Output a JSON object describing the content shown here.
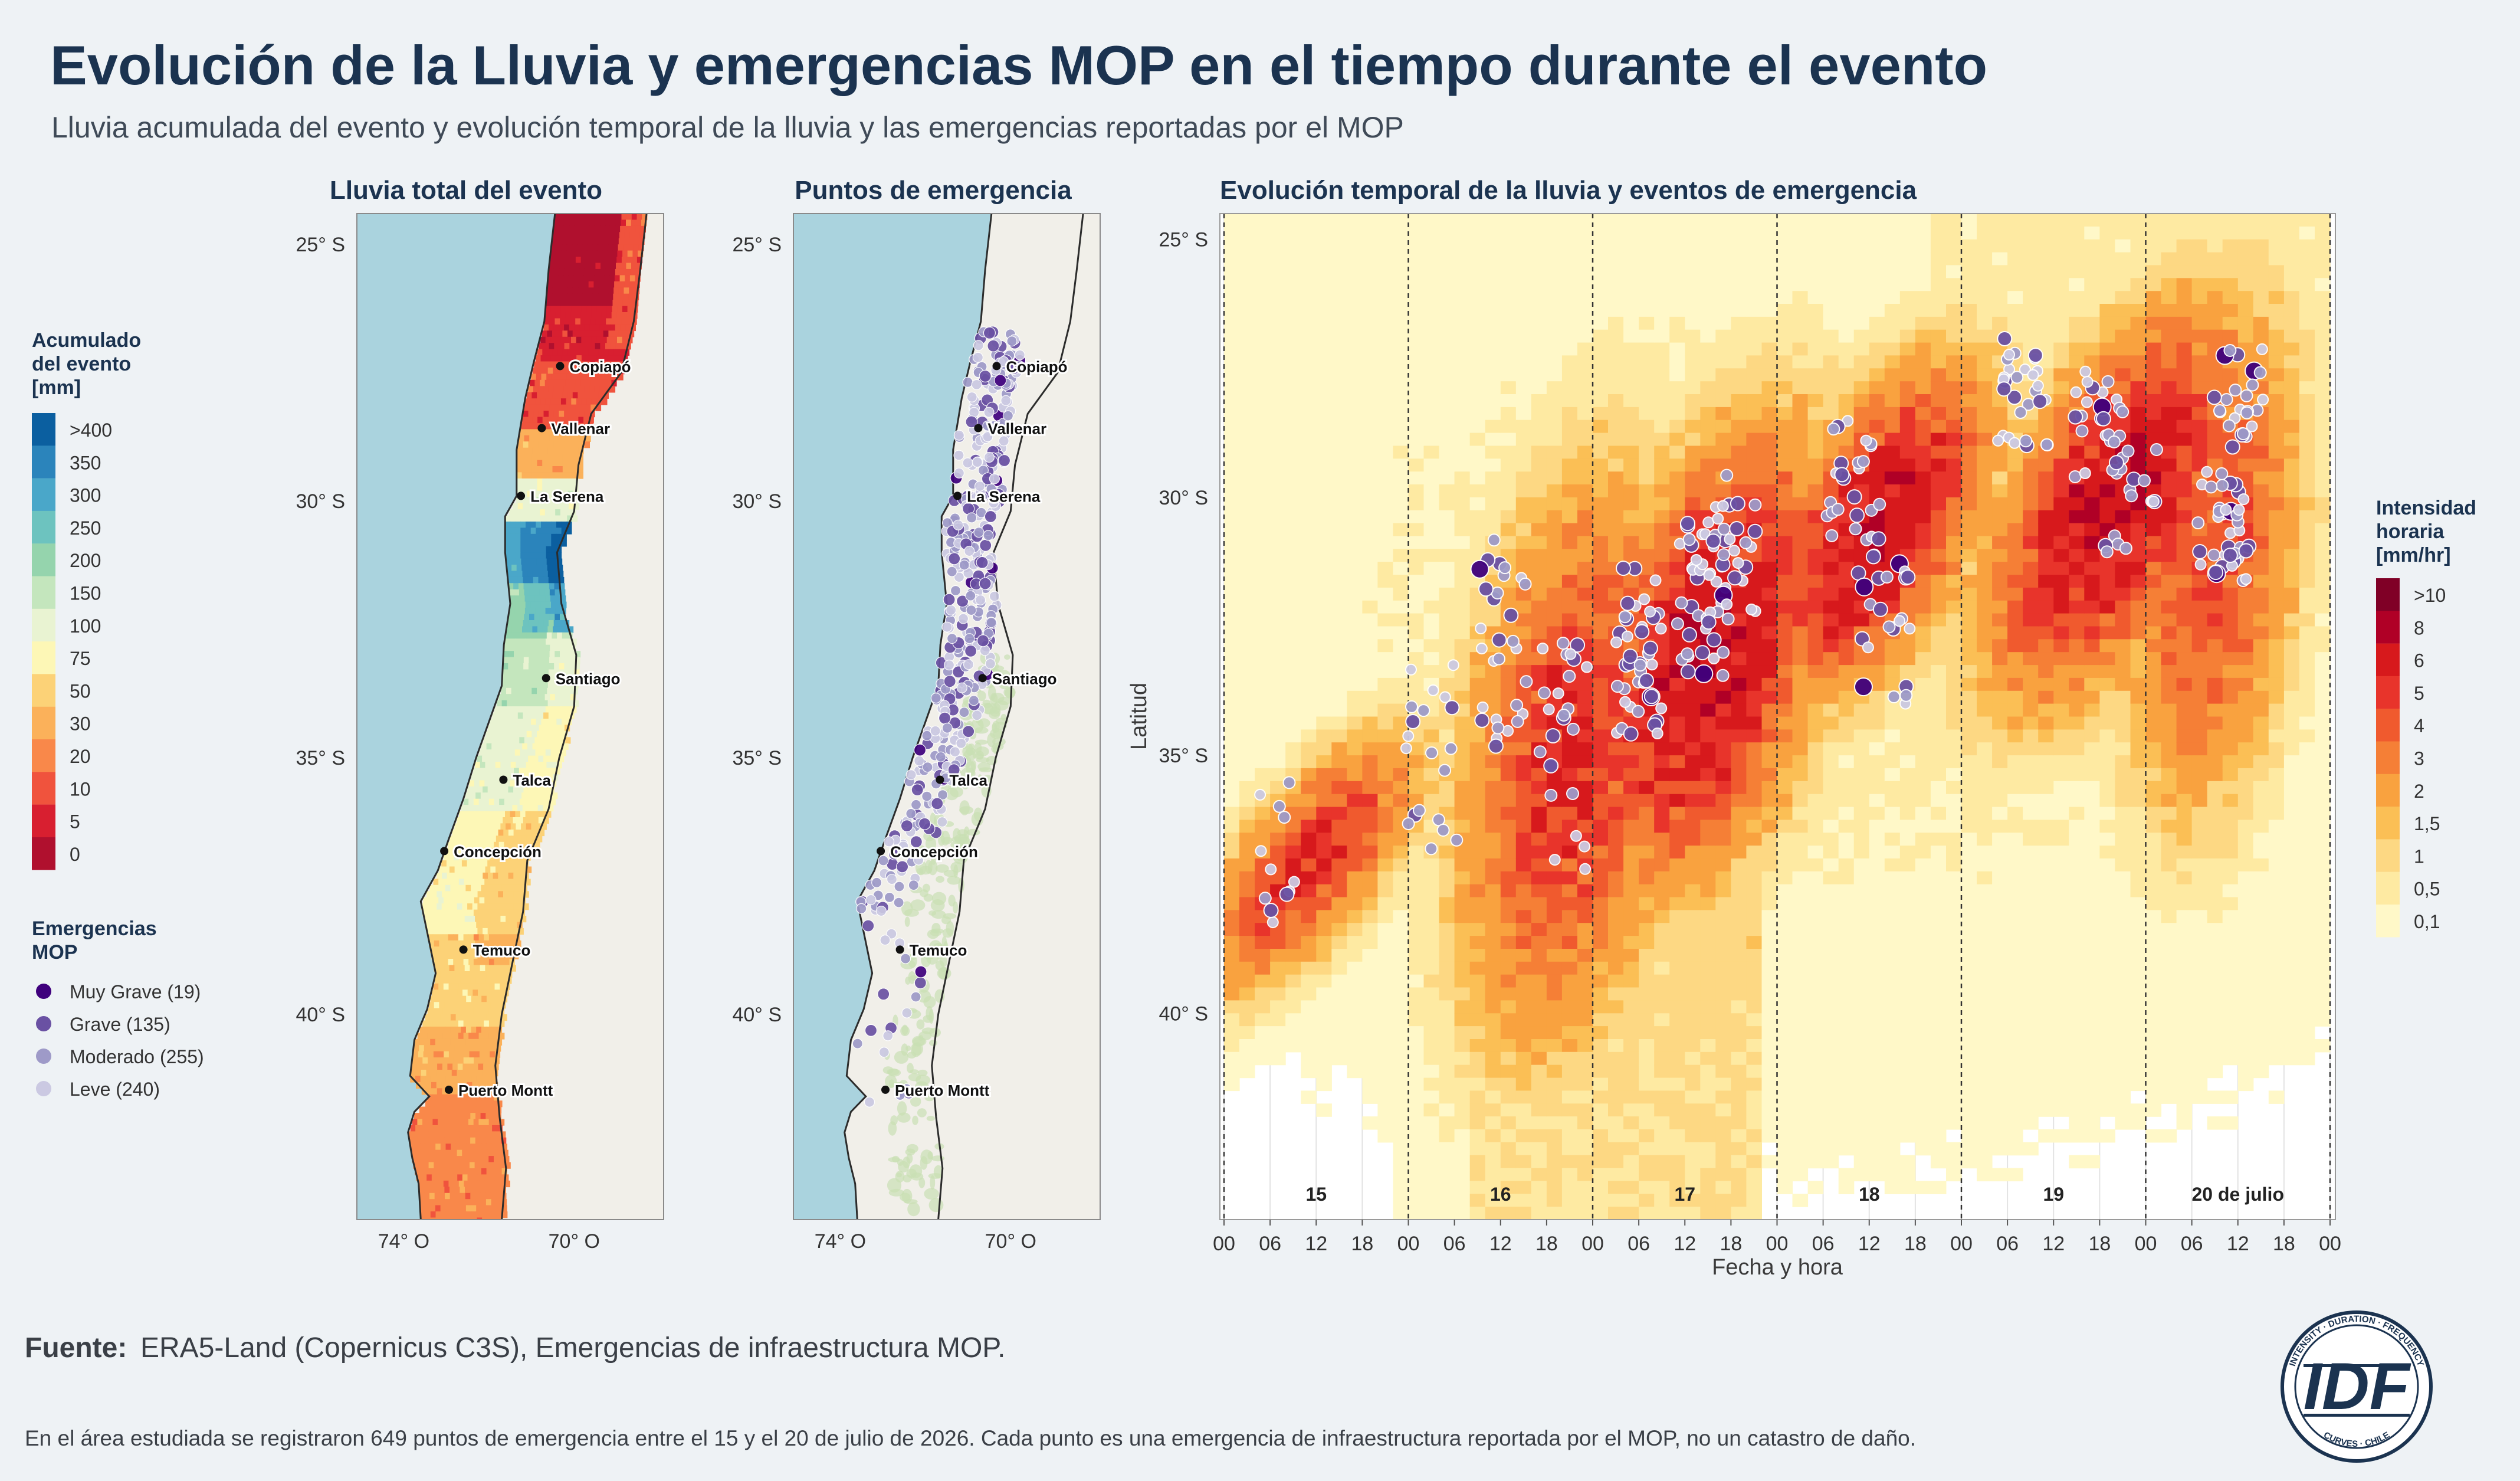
{
  "header": {
    "title": "Evolución de la Lluvia y emergencias MOP en el tiempo durante el evento",
    "subtitle": "Lluvia acumulada del evento y evolución temporal de la lluvia y las emergencias reportadas por el MOP"
  },
  "legend_rain": {
    "title": [
      "Acumulado",
      "del evento",
      "[mm]"
    ],
    "labels": [
      ">400",
      "350",
      "300",
      "250",
      "200",
      "150",
      "100",
      "75",
      "50",
      "30",
      "20",
      "10",
      "5",
      "0"
    ],
    "colors": [
      "#0b5fa0",
      "#2b84bb",
      "#4aa7c9",
      "#6dc3bf",
      "#95d4ad",
      "#c4e6bd",
      "#e9f3d2",
      "#fdf7b6",
      "#fcd277",
      "#fbb15a",
      "#f9884a",
      "#f0533d",
      "#d81f30",
      "#b0102e"
    ]
  },
  "legend_emerg": {
    "title": [
      "Emergencias",
      "MOP"
    ],
    "items": [
      {
        "label": "Muy Grave (19)",
        "color": "#3f007d"
      },
      {
        "label": "Grave (135)",
        "color": "#6a51a3"
      },
      {
        "label": "Moderado (255)",
        "color": "#9e9ac8"
      },
      {
        "label": "Leve (240)",
        "color": "#cbc9e2"
      }
    ]
  },
  "legend_intensity": {
    "title": [
      "Intensidad",
      "horaria",
      "[mm/hr]"
    ],
    "labels": [
      ">10",
      "8",
      "6",
      "5",
      "4",
      "3",
      "2",
      "1,5",
      "1",
      "0,5",
      "0,1"
    ],
    "colors": [
      "#800026",
      "#b00026",
      "#d7191c",
      "#e8342b",
      "#f05a2e",
      "#f57f36",
      "#f9a23f",
      "#fbbf55",
      "#fdd883",
      "#feeaa2",
      "#fff8c8"
    ]
  },
  "maps": {
    "rain_title": "Lluvia total del evento",
    "emerg_title": "Puntos de emergencia",
    "lat_labels": [
      "25° S",
      "30° S",
      "35° S",
      "40° S"
    ],
    "lon_labels": [
      "74° O",
      "70° O"
    ],
    "cities": [
      "Copiapó",
      "Vallenar",
      "La Serena",
      "Santiago",
      "Talca",
      "Concepción",
      "Temuco",
      "Puerto Montt"
    ]
  },
  "chart_data": {
    "type": "heatmap",
    "title": "Evolución temporal de la lluvia y eventos de emergencia",
    "xlabel": "Fecha y hora",
    "ylabel": "Latitud",
    "x_ticks": [
      "00",
      "06",
      "12",
      "18",
      "00",
      "06",
      "12",
      "18",
      "00",
      "06",
      "12",
      "18",
      "00",
      "06",
      "12",
      "18",
      "00",
      "06",
      "12",
      "18",
      "00",
      "06",
      "12",
      "18",
      "00"
    ],
    "day_labels": [
      "15",
      "16",
      "17",
      "18",
      "19",
      "20 de julio"
    ],
    "y_ticks": [
      "25° S",
      "30° S",
      "35° S",
      "40° S"
    ],
    "ylim": [
      -44,
      -24.5
    ],
    "xlim_hours": [
      0,
      144
    ],
    "intensity_mm_hr_bins": [
      0.1,
      0.5,
      1,
      1.5,
      2,
      3,
      4,
      5,
      6,
      8,
      10
    ],
    "rain_bands": [
      {
        "start_hour": 0,
        "end_hour": 30,
        "lat_from": -39,
        "lat_to": -35,
        "peak_hour": 10,
        "peak_lat": -37,
        "max_intensity": 6
      },
      {
        "start_hour": 30,
        "end_hour": 60,
        "lat_from": -43,
        "lat_to": -31,
        "peak_hour": 44,
        "peak_lat": -35,
        "max_intensity": 6
      },
      {
        "start_hour": 45,
        "end_hour": 78,
        "lat_from": -37,
        "lat_to": -28,
        "peak_hour": 62,
        "peak_lat": -33,
        "max_intensity": 8
      },
      {
        "start_hour": 70,
        "end_hour": 100,
        "lat_from": -33,
        "lat_to": -27,
        "peak_hour": 84,
        "peak_lat": -30.5,
        "max_intensity": 8
      },
      {
        "start_hour": 95,
        "end_hour": 130,
        "lat_from": -33,
        "lat_to": -26,
        "peak_hour": 115,
        "peak_lat": -30,
        "max_intensity": 8
      },
      {
        "start_hour": 120,
        "end_hour": 144,
        "lat_from": -36,
        "lat_to": -25,
        "peak_hour": 128,
        "peak_lat": -31,
        "max_intensity": 5
      }
    ],
    "emergencies_total": 649,
    "emergencies_by_severity": {
      "Muy Grave": 19,
      "Grave": 135,
      "Moderado": 255,
      "Leve": 240
    }
  },
  "footer": {
    "source_label": "Fuente:",
    "source_text": "ERA5-Land (Copernicus C3S), Emergencias de infraestructura MOP.",
    "note": "En el área estudiada se registraron 649 puntos de emergencia entre el 15 y el 20 de julio de 2026. Cada punto es una emergencia de infraestructura reportada por el MOP, no un catastro de daño."
  },
  "logo": {
    "text": "IDF",
    "ring_top": "INTENSITY · DURATION · FREQUENCY",
    "ring_bottom": "CURVES · CHILE"
  }
}
